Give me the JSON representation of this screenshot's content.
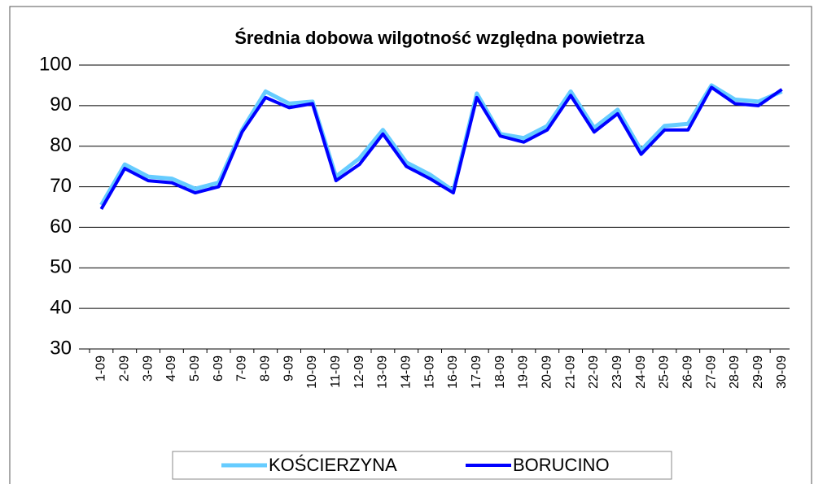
{
  "chart_data": {
    "type": "line",
    "title": "Średnia dobowa wilgotność względna powietrza",
    "categories": [
      "1-09",
      "2-09",
      "3-09",
      "4-09",
      "5-09",
      "6-09",
      "7-09",
      "8-09",
      "9-09",
      "10-09",
      "11-09",
      "12-09",
      "13-09",
      "14-09",
      "15-09",
      "16-09",
      "17-09",
      "18-09",
      "19-09",
      "20-09",
      "21-09",
      "22-09",
      "23-09",
      "24-09",
      "25-09",
      "26-09",
      "27-09",
      "28-09",
      "29-09",
      "30-09"
    ],
    "series": [
      {
        "name": "KOŚCIERZYNA",
        "color": "#66ccff",
        "values": [
          65.5,
          75.5,
          72.5,
          72,
          69.5,
          71,
          84,
          93.5,
          90.5,
          91,
          72.5,
          77,
          84,
          76,
          73,
          69,
          93,
          83,
          82,
          85,
          93.5,
          84.5,
          89,
          79,
          85,
          85.5,
          95,
          91.5,
          91,
          93.5
        ]
      },
      {
        "name": "BORUCINO",
        "color": "#0000ff",
        "values": [
          64.5,
          74.5,
          71.5,
          71,
          68.5,
          70,
          83.5,
          92,
          89.5,
          90.5,
          71.5,
          75.5,
          83,
          75,
          72,
          68.5,
          92,
          82.5,
          81,
          84,
          92.5,
          83.5,
          88,
          78,
          84,
          84,
          94.5,
          90.5,
          90,
          94
        ]
      }
    ],
    "ylim": [
      30,
      100
    ],
    "yticks": [
      30,
      40,
      50,
      60,
      70,
      80,
      90,
      100
    ],
    "grid": true,
    "legend": "bottom"
  }
}
